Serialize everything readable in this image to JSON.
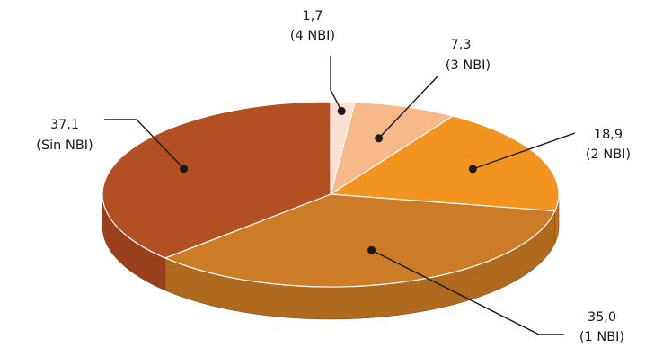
{
  "chart_data": {
    "type": "pie",
    "title": "",
    "slices": [
      {
        "value": 1.7,
        "value_text": "1,7",
        "label": "(4 NBI)",
        "color": "#fbe0d2",
        "dark": "#d9b9a8"
      },
      {
        "value": 7.3,
        "value_text": "7,3",
        "label": "(3 NBI)",
        "color": "#f7b98a",
        "dark": "#d99a6b"
      },
      {
        "value": 18.9,
        "value_text": "18,9",
        "label": "(2 NBI)",
        "color": "#f39420",
        "dark": "#c8700f"
      },
      {
        "value": 35.0,
        "value_text": "35,0",
        "label": "(1 NBI)",
        "color": "#cc7b27",
        "dark": "#b06a1f"
      },
      {
        "value": 37.1,
        "value_text": "37,1",
        "label": "(Sin NBI)",
        "color": "#b24f23",
        "dark": "#9a3f1b"
      }
    ]
  }
}
